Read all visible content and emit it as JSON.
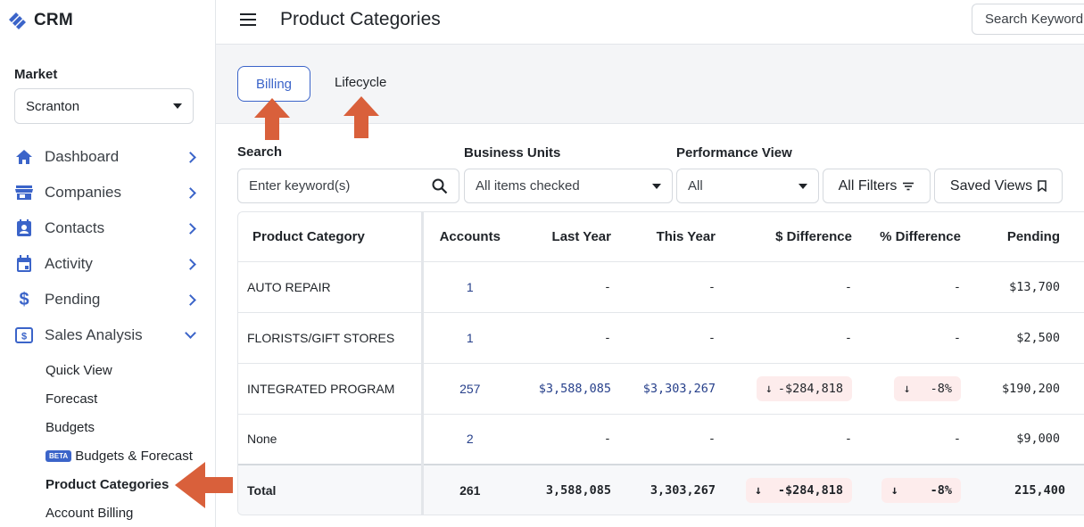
{
  "app": {
    "name": "CRM"
  },
  "sidebar": {
    "market_label": "Market",
    "market_value": "Scranton",
    "nav": [
      {
        "label": "Dashboard",
        "icon": "home-icon"
      },
      {
        "label": "Companies",
        "icon": "store-icon"
      },
      {
        "label": "Contacts",
        "icon": "contact-card-icon"
      },
      {
        "label": "Activity",
        "icon": "calendar-icon"
      },
      {
        "label": "Pending",
        "icon": "dollar-icon"
      },
      {
        "label": "Sales Analysis",
        "icon": "sales-analysis-icon"
      }
    ],
    "sub_items": [
      "Quick View",
      "Forecast",
      "Budgets",
      "Budgets & Forecast",
      "Product Categories",
      "Account Billing"
    ],
    "beta_label": "BETA"
  },
  "header": {
    "title": "Product Categories",
    "search_placeholder": "Search Keyword"
  },
  "tabs": [
    "Billing",
    "Lifecycle"
  ],
  "filters": {
    "search_label": "Search",
    "search_placeholder": "Enter keyword(s)",
    "business_units_label": "Business Units",
    "business_units_value": "All items checked",
    "performance_label": "Performance View",
    "performance_value": "All",
    "all_filters": "All Filters",
    "saved_views": "Saved Views"
  },
  "table": {
    "headers": [
      "Product Category",
      "Accounts",
      "Last Year",
      "This Year",
      "$ Difference",
      "% Difference",
      "Pending"
    ],
    "rows": [
      {
        "category": "AUTO REPAIR",
        "accounts": "1",
        "last_year": "-",
        "this_year": "-",
        "diff": "-",
        "pct": "-",
        "pending": "$13,700"
      },
      {
        "category": "FLORISTS/GIFT STORES",
        "accounts": "1",
        "last_year": "-",
        "this_year": "-",
        "diff": "-",
        "pct": "-",
        "pending": "$2,500"
      },
      {
        "category": "INTEGRATED PROGRAM",
        "accounts": "257",
        "last_year": "$3,588,085",
        "this_year": "$3,303,267",
        "diff": "-$284,818",
        "pct": "-8%",
        "pending": "$190,200"
      },
      {
        "category": "None",
        "accounts": "2",
        "last_year": "-",
        "this_year": "-",
        "diff": "-",
        "pct": "-",
        "pending": "$9,000"
      }
    ],
    "total": {
      "category": "Total",
      "accounts": "261",
      "last_year": "3,588,085",
      "this_year": "3,303,267",
      "diff": "-$284,818",
      "pct": "-8%",
      "pending": "215,400"
    }
  },
  "colors": {
    "accent": "#3b64c9",
    "annotation_arrow": "#d9603b",
    "negative_bg": "#fdecec"
  }
}
